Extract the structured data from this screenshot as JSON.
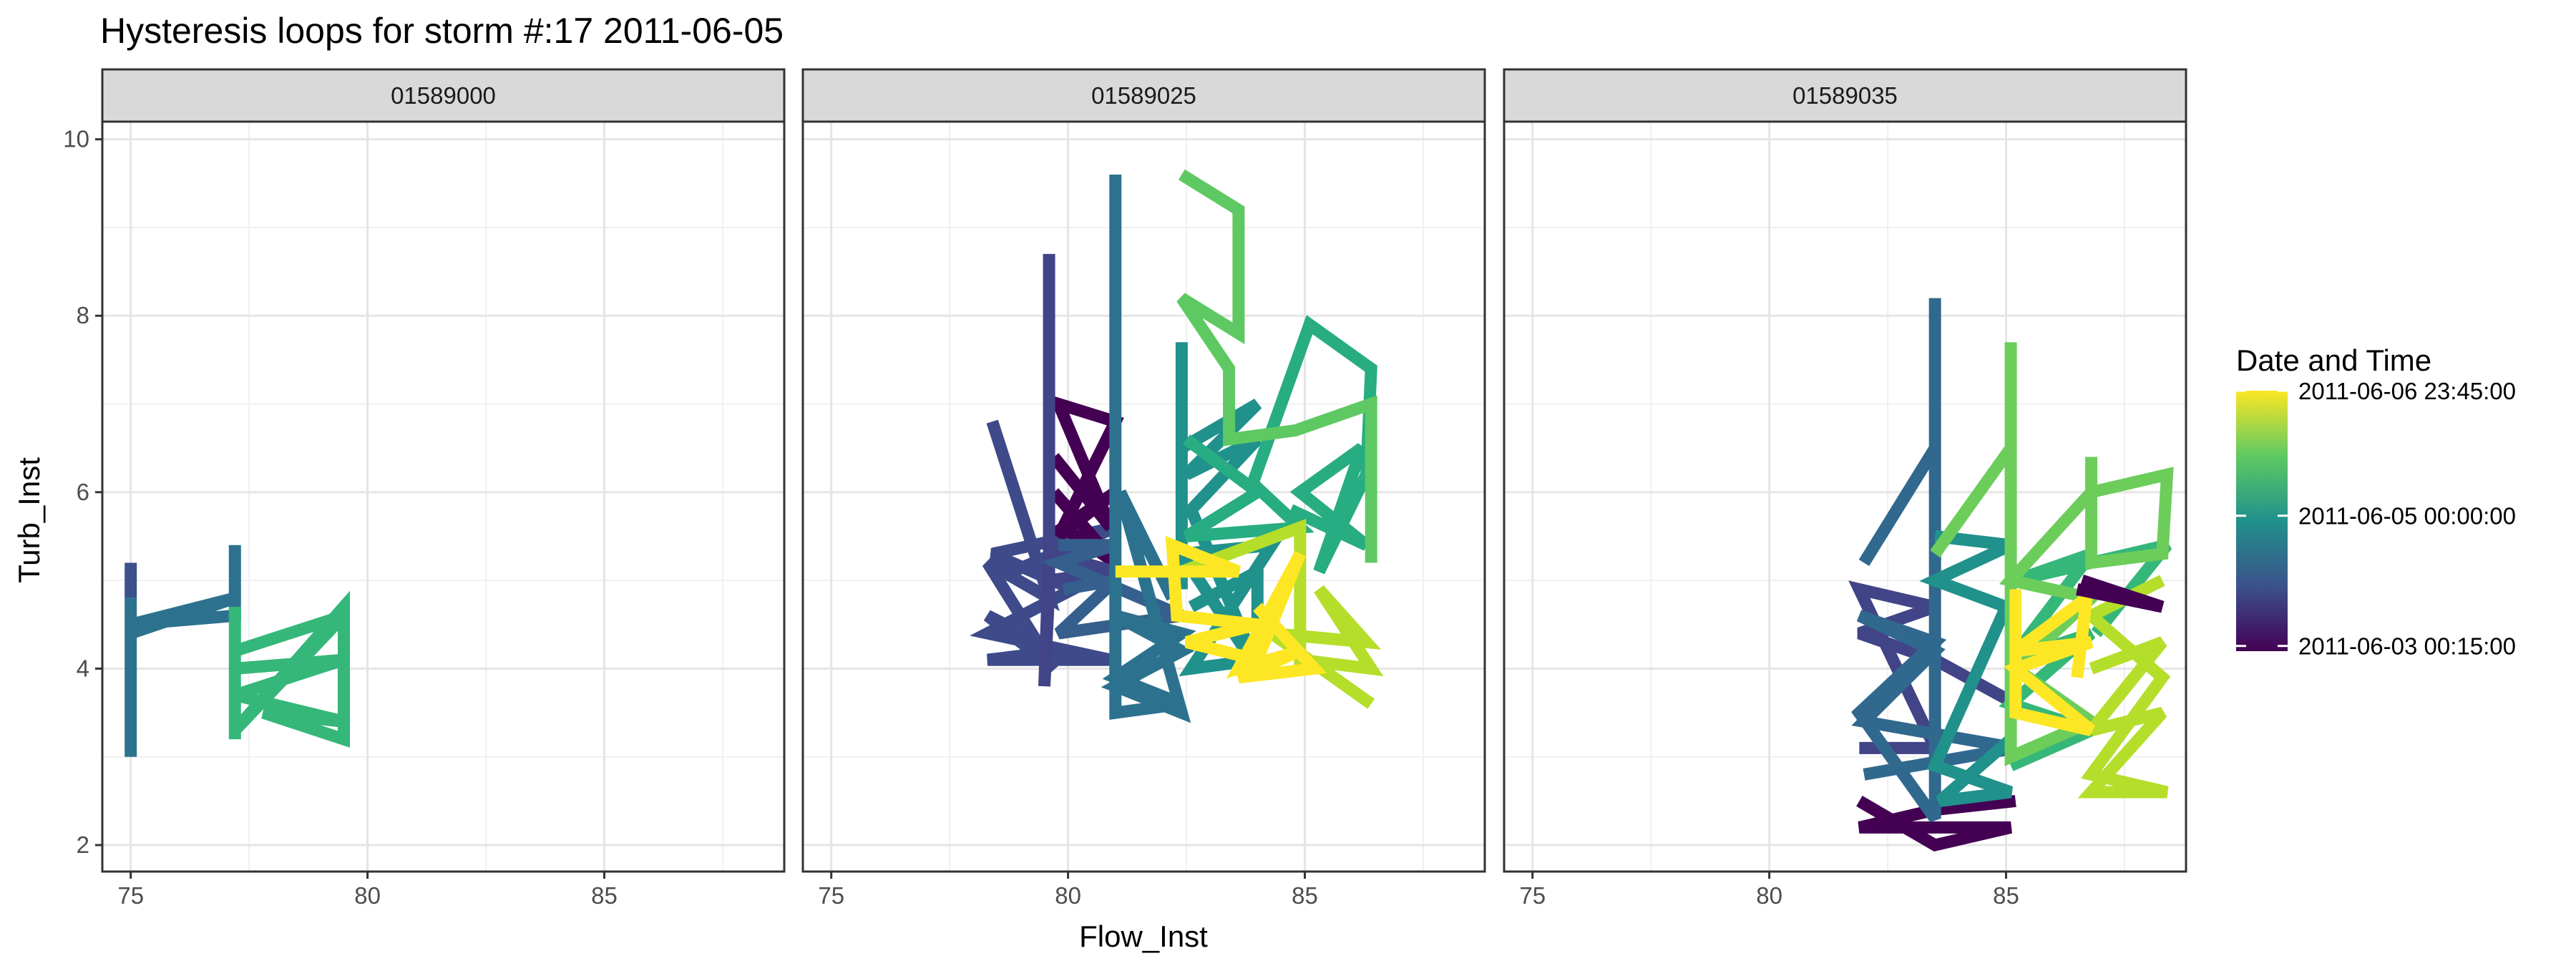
{
  "chart_data": {
    "type": "line",
    "title": "Hysteresis loops for storm #:17   2011-06-05",
    "xlabel": "Flow_Inst",
    "ylabel": "Turb_Inst",
    "xlim": [
      74.4,
      88.8
    ],
    "ylim": [
      1.7,
      10.2
    ],
    "x_ticks": [
      75,
      80,
      85
    ],
    "y_ticks": [
      2,
      4,
      6,
      8,
      10
    ],
    "grid": true,
    "legend": {
      "title": "Date and Time",
      "placement": "right",
      "colorbar": [
        "#440154",
        "#3b528b",
        "#21918c",
        "#5ec962",
        "#fde725"
      ],
      "labels": [
        {
          "text": "2011-06-06 23:45:00",
          "pos": 1.0
        },
        {
          "text": "2011-06-05 00:00:00",
          "pos": 0.52
        },
        {
          "text": "2011-06-03 00:15:00",
          "pos": 0.02
        }
      ]
    },
    "panels": [
      {
        "label": "01589000",
        "series": [
          {
            "color": "#3b528b",
            "points": [
              [
                75.0,
                5.2
              ],
              [
                75.0,
                4.8
              ]
            ]
          },
          {
            "color": "#2c728e",
            "points": [
              [
                75.0,
                4.8
              ],
              [
                75.0,
                3.0
              ],
              [
                75.0,
                4.4
              ],
              [
                77.2,
                4.8
              ],
              [
                75.0,
                4.5
              ],
              [
                77.2,
                4.6
              ],
              [
                77.2,
                5.4
              ],
              [
                77.2,
                4.7
              ]
            ]
          },
          {
            "color": "#35b779",
            "points": [
              [
                77.2,
                4.7
              ],
              [
                77.2,
                3.2
              ],
              [
                77.2,
                4.2
              ],
              [
                79.5,
                4.6
              ],
              [
                77.2,
                3.3
              ],
              [
                79.5,
                4.7
              ],
              [
                79.5,
                3.2
              ],
              [
                77.8,
                3.5
              ],
              [
                79.5,
                3.4
              ],
              [
                77.2,
                3.7
              ],
              [
                79.5,
                4.1
              ],
              [
                77.2,
                4.0
              ]
            ]
          }
        ]
      },
      {
        "label": "01589025",
        "series": [
          {
            "color": "#3e4a89",
            "points": [
              [
                78.4,
                6.8
              ],
              [
                79.6,
                4.8
              ],
              [
                78.3,
                5.2
              ],
              [
                79.7,
                4.0
              ],
              [
                78.3,
                4.6
              ],
              [
                79.8,
                4.2
              ],
              [
                78.3,
                4.1
              ],
              [
                80.9,
                4.1
              ],
              [
                78.3,
                4.4
              ],
              [
                80.1,
                4.9
              ],
              [
                78.4,
                5.3
              ],
              [
                81.0,
                5.6
              ],
              [
                78.4,
                5.0
              ]
            ]
          },
          {
            "color": "#440154",
            "points": [
              [
                79.7,
                6.4
              ],
              [
                80.9,
                5.6
              ],
              [
                79.8,
                7.0
              ],
              [
                81.0,
                6.8
              ],
              [
                79.8,
                5.5
              ],
              [
                81.0,
                6.0
              ],
              [
                79.9,
                5.6
              ],
              [
                81.0,
                5.2
              ],
              [
                79.7,
                6.0
              ]
            ]
          },
          {
            "color": "#414487",
            "points": [
              [
                79.6,
                8.7
              ],
              [
                79.6,
                4.9
              ],
              [
                79.5,
                3.8
              ],
              [
                79.6,
                5.3
              ],
              [
                81.0,
                5.1
              ],
              [
                79.6,
                5.0
              ]
            ]
          },
          {
            "color": "#355f8d",
            "points": [
              [
                79.8,
                5.4
              ],
              [
                81.0,
                5.4
              ],
              [
                79.8,
                5.2
              ],
              [
                82.4,
                4.6
              ],
              [
                79.8,
                4.4
              ],
              [
                81.0,
                5.0
              ],
              [
                79.9,
                4.9
              ]
            ]
          },
          {
            "color": "#2c728e",
            "points": [
              [
                81.0,
                9.6
              ],
              [
                81.0,
                3.5
              ],
              [
                82.4,
                3.6
              ],
              [
                81.0,
                3.9
              ],
              [
                82.4,
                4.4
              ],
              [
                81.0,
                4.6
              ],
              [
                82.4,
                4.2
              ],
              [
                81.0,
                3.8
              ],
              [
                82.4,
                3.5
              ],
              [
                81.1,
                6.0
              ],
              [
                82.2,
                4.8
              ]
            ]
          },
          {
            "color": "#21918c",
            "points": [
              [
                82.4,
                7.7
              ],
              [
                82.4,
                4.9
              ],
              [
                82.4,
                6.5
              ],
              [
                84.0,
                7.0
              ],
              [
                82.5,
                6.2
              ],
              [
                84.0,
                6.6
              ],
              [
                82.6,
                5.8
              ],
              [
                84.0,
                4.0
              ],
              [
                82.4,
                5.3
              ],
              [
                84.3,
                5.4
              ],
              [
                82.6,
                4.0
              ],
              [
                84.0,
                4.1
              ],
              [
                84.0,
                5.1
              ],
              [
                82.6,
                4.7
              ]
            ]
          },
          {
            "color": "#27ad81",
            "points": [
              [
                82.5,
                6.6
              ],
              [
                84.0,
                6.0
              ],
              [
                82.5,
                5.5
              ],
              [
                84.9,
                5.6
              ],
              [
                83.9,
                6.1
              ],
              [
                85.1,
                7.9
              ],
              [
                86.4,
                7.4
              ],
              [
                86.3,
                6.2
              ],
              [
                85.3,
                5.1
              ],
              [
                86.2,
                6.5
              ],
              [
                84.9,
                6.0
              ],
              [
                86.3,
                5.4
              ],
              [
                84.7,
                5.8
              ]
            ]
          },
          {
            "color": "#5ec962",
            "points": [
              [
                82.4,
                9.6
              ],
              [
                83.6,
                9.2
              ],
              [
                83.6,
                7.8
              ],
              [
                82.4,
                8.2
              ],
              [
                83.4,
                7.4
              ],
              [
                83.4,
                6.6
              ],
              [
                84.8,
                6.7
              ],
              [
                86.4,
                7.0
              ],
              [
                86.4,
                5.2
              ]
            ]
          },
          {
            "color": "#b5de2b",
            "points": [
              [
                82.4,
                5.1
              ],
              [
                84.9,
                5.6
              ],
              [
                84.9,
                4.1
              ],
              [
                86.4,
                4.0
              ],
              [
                85.3,
                4.9
              ],
              [
                86.3,
                4.3
              ],
              [
                84.3,
                4.4
              ],
              [
                86.4,
                3.6
              ]
            ]
          },
          {
            "color": "#fde725",
            "points": [
              [
                81.0,
                5.1
              ],
              [
                83.6,
                5.1
              ],
              [
                82.2,
                5.4
              ],
              [
                82.3,
                4.6
              ],
              [
                84.0,
                4.5
              ],
              [
                82.5,
                4.3
              ],
              [
                84.0,
                4.1
              ],
              [
                84.9,
                5.3
              ],
              [
                83.6,
                4.0
              ],
              [
                84.9,
                4.2
              ],
              [
                83.6,
                3.9
              ],
              [
                85.2,
                4.0
              ],
              [
                84.0,
                4.7
              ]
            ]
          }
        ]
      },
      {
        "label": "01589035",
        "series": [
          {
            "color": "#440154",
            "points": [
              [
                81.9,
                2.5
              ],
              [
                83.5,
                2.0
              ],
              [
                85.1,
                2.2
              ],
              [
                81.9,
                2.2
              ],
              [
                83.5,
                2.4
              ],
              [
                85.2,
                2.5
              ]
            ]
          },
          {
            "color": "#414487",
            "points": [
              [
                81.9,
                3.1
              ],
              [
                83.5,
                3.1
              ],
              [
                81.9,
                4.9
              ],
              [
                83.5,
                4.7
              ],
              [
                81.9,
                4.4
              ],
              [
                83.5,
                4.1
              ],
              [
                85.2,
                3.6
              ]
            ]
          },
          {
            "color": "#31688e",
            "points": [
              [
                82.0,
                5.2
              ],
              [
                83.5,
                6.5
              ],
              [
                83.5,
                8.2
              ],
              [
                83.5,
                2.3
              ],
              [
                81.9,
                3.5
              ],
              [
                83.5,
                4.3
              ],
              [
                81.9,
                4.6
              ],
              [
                83.5,
                4.2
              ],
              [
                82.0,
                3.4
              ],
              [
                85.2,
                3.1
              ],
              [
                82.0,
                2.8
              ]
            ]
          },
          {
            "color": "#21918c",
            "points": [
              [
                83.5,
                5.5
              ],
              [
                85.1,
                5.4
              ],
              [
                83.5,
                5.0
              ],
              [
                85.0,
                4.7
              ],
              [
                83.5,
                2.9
              ],
              [
                85.1,
                2.6
              ],
              [
                83.6,
                2.5
              ],
              [
                85.1,
                3.2
              ]
            ]
          },
          {
            "color": "#35b779",
            "points": [
              [
                85.1,
                2.9
              ],
              [
                86.8,
                3.3
              ],
              [
                85.1,
                3.6
              ],
              [
                86.8,
                4.4
              ],
              [
                85.1,
                4.1
              ],
              [
                86.8,
                5.3
              ],
              [
                85.2,
                5.0
              ],
              [
                88.4,
                5.4
              ],
              [
                86.9,
                4.4
              ]
            ]
          },
          {
            "color": "#6ccd5a",
            "points": [
              [
                83.5,
                5.3
              ],
              [
                85.1,
                6.5
              ],
              [
                85.1,
                7.7
              ],
              [
                85.1,
                3.0
              ],
              [
                86.8,
                3.4
              ],
              [
                85.2,
                4.0
              ],
              [
                86.8,
                4.8
              ],
              [
                85.1,
                5.0
              ],
              [
                86.8,
                6.0
              ],
              [
                88.4,
                6.2
              ],
              [
                88.3,
                5.3
              ],
              [
                86.8,
                5.2
              ],
              [
                86.8,
                6.4
              ]
            ]
          },
          {
            "color": "#b5de2b",
            "points": [
              [
                86.8,
                4.0
              ],
              [
                88.3,
                4.3
              ],
              [
                86.8,
                3.3
              ],
              [
                88.3,
                3.5
              ],
              [
                86.8,
                2.6
              ],
              [
                88.4,
                2.6
              ],
              [
                86.8,
                2.8
              ],
              [
                88.3,
                3.9
              ],
              [
                86.8,
                4.6
              ],
              [
                88.3,
                5.0
              ]
            ]
          },
          {
            "color": "#fde725",
            "points": [
              [
                85.2,
                4.9
              ],
              [
                85.2,
                3.5
              ],
              [
                86.8,
                3.3
              ],
              [
                85.2,
                4.0
              ],
              [
                86.8,
                4.3
              ],
              [
                85.2,
                4.2
              ],
              [
                86.7,
                4.8
              ],
              [
                86.5,
                3.9
              ]
            ]
          },
          {
            "color": "#440154",
            "points": [
              [
                86.6,
                5.0
              ],
              [
                88.3,
                4.7
              ],
              [
                86.5,
                4.9
              ]
            ]
          }
        ]
      }
    ]
  }
}
